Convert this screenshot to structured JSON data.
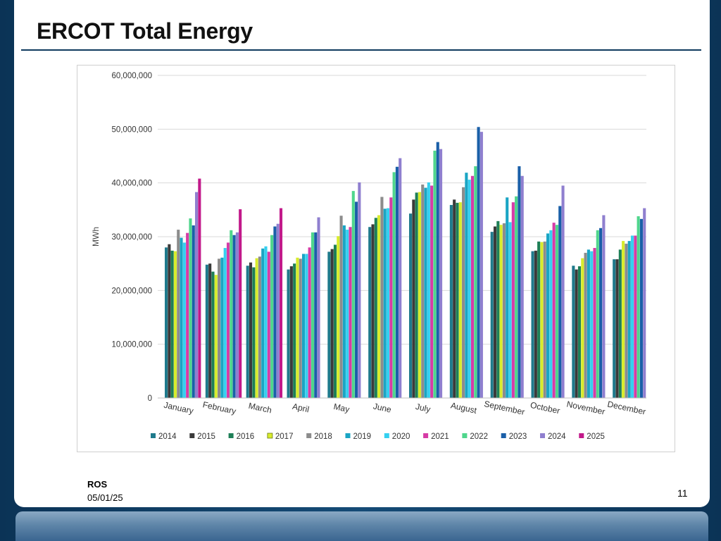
{
  "slide": {
    "title": "ERCOT Total Energy",
    "footer_label": "ROS",
    "footer_date": "05/01/25",
    "page_number": "11"
  },
  "chart_data": {
    "type": "bar",
    "title": "",
    "xlabel": "",
    "ylabel": "MWh",
    "ylim": [
      0,
      60000000
    ],
    "yticks": [
      0,
      10000000,
      20000000,
      30000000,
      40000000,
      50000000,
      60000000
    ],
    "ytick_labels": [
      "0",
      "10,000,000",
      "20,000,000",
      "30,000,000",
      "40,000,000",
      "50,000,000",
      "60,000,000"
    ],
    "grid": true,
    "legend_position": "bottom",
    "categories": [
      "January",
      "February",
      "March",
      "April",
      "May",
      "June",
      "July",
      "August",
      "September",
      "October",
      "November",
      "December"
    ],
    "series": [
      {
        "name": "2014",
        "color": "#1f7a8c",
        "values": [
          28000000,
          24800000,
          24600000,
          23900000,
          27200000,
          31800000,
          34300000,
          35900000,
          30900000,
          27300000,
          24600000,
          25800000
        ]
      },
      {
        "name": "2015",
        "color": "#3a3a3a",
        "values": [
          28600000,
          25000000,
          25200000,
          24500000,
          27700000,
          32300000,
          36900000,
          36900000,
          31900000,
          27400000,
          23900000,
          25800000
        ]
      },
      {
        "name": "2016",
        "color": "#1e7f57",
        "values": [
          27400000,
          23500000,
          24300000,
          25000000,
          28500000,
          33500000,
          38200000,
          36300000,
          32900000,
          29100000,
          24500000,
          27600000
        ]
      },
      {
        "name": "2017",
        "color": "#d8ec2c",
        "values": [
          27300000,
          22900000,
          26000000,
          26100000,
          30100000,
          34000000,
          38300000,
          36400000,
          32200000,
          29000000,
          26000000,
          29200000
        ]
      },
      {
        "name": "2018",
        "color": "#8c8c8c",
        "values": [
          31300000,
          25900000,
          26300000,
          25900000,
          33900000,
          37400000,
          39700000,
          39200000,
          32500000,
          29100000,
          27000000,
          28700000
        ]
      },
      {
        "name": "2019",
        "color": "#1aa5c4",
        "values": [
          29800000,
          26100000,
          27800000,
          26800000,
          32100000,
          35200000,
          39100000,
          41900000,
          37300000,
          30600000,
          27600000,
          29200000
        ]
      },
      {
        "name": "2020",
        "color": "#35d0f0",
        "values": [
          28900000,
          27900000,
          28200000,
          26800000,
          31300000,
          35300000,
          40100000,
          40600000,
          32700000,
          31200000,
          27300000,
          30200000
        ]
      },
      {
        "name": "2021",
        "color": "#d63ba6",
        "values": [
          30700000,
          28900000,
          27200000,
          28000000,
          31800000,
          37300000,
          39500000,
          41300000,
          36400000,
          32600000,
          27900000,
          30200000
        ]
      },
      {
        "name": "2022",
        "color": "#4fd68c",
        "values": [
          33400000,
          31200000,
          30300000,
          30800000,
          38500000,
          42000000,
          46000000,
          43100000,
          37500000,
          32200000,
          31200000,
          33800000
        ]
      },
      {
        "name": "2023",
        "color": "#1a5fa8",
        "values": [
          32100000,
          30300000,
          31900000,
          30800000,
          36500000,
          43000000,
          47600000,
          50400000,
          43100000,
          35700000,
          31600000,
          33300000
        ]
      },
      {
        "name": "2024",
        "color": "#8f7fcf",
        "values": [
          38300000,
          30800000,
          32400000,
          33600000,
          40100000,
          44600000,
          46300000,
          49500000,
          41300000,
          39500000,
          34000000,
          35300000
        ]
      },
      {
        "name": "2025",
        "color": "#c2198a",
        "values": [
          40800000,
          35100000,
          35300000,
          null,
          null,
          null,
          null,
          null,
          null,
          null,
          null,
          null
        ]
      }
    ]
  }
}
